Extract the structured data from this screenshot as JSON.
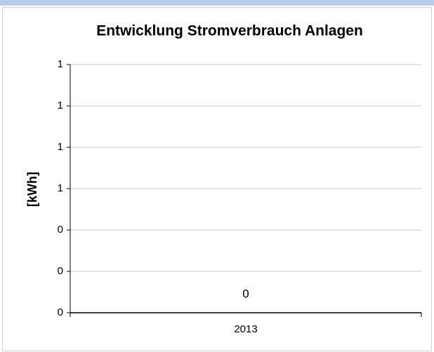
{
  "chart_data": {
    "type": "bar",
    "title": "Entwicklung Stromverbrauch Anlagen",
    "ylabel": "[kWh]",
    "categories": [
      "2013"
    ],
    "values": [
      0
    ],
    "color": "#4f81bd",
    "ylim": [
      0,
      1.2
    ],
    "yticks": [
      0,
      {
        "value": 0.2,
        "label": "0"
      },
      {
        "value": 0.4,
        "label": "0"
      },
      {
        "value": 0.6,
        "label": "1"
      },
      {
        "value": 0.8,
        "label": "1"
      },
      {
        "value": 1,
        "label": "1"
      },
      {
        "value": 1.2,
        "label": "1"
      }
    ],
    "grid": true
  }
}
